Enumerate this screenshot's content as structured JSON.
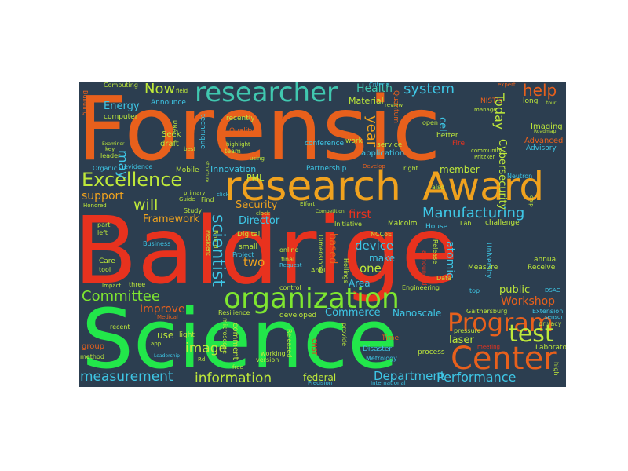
{
  "canvas": {
    "background": "#2c3e50"
  },
  "words": {
    "forensic": "Forensic",
    "baldrige": "Baldrige",
    "science": "Science",
    "research": "research",
    "award": "Award",
    "researcher": "researcher",
    "organization": "organization",
    "center": "Center",
    "program": "Program",
    "excellence": "Excellence",
    "manufacturing": "Manufacturing",
    "committee": "Committee",
    "measurement": "measurement",
    "information": "information",
    "department": "Department",
    "performance": "Performance",
    "workshop": "Workshop",
    "test": "test",
    "image": "image",
    "scientist": "scientist",
    "system": "system",
    "health": "Health",
    "help": "help",
    "now": "Now",
    "energy": "Energy",
    "framework": "Framework",
    "will": "will",
    "support": "support",
    "security": "Security",
    "director": "Director",
    "first": "first",
    "device": "device",
    "one": "one",
    "make": "make",
    "two": "two",
    "improve": "Improve",
    "public": "public",
    "laser": "laser",
    "commerce": "Commerce",
    "nanoscale": "Nanoscale",
    "federal": "federal",
    "cybersecurity": "Cybersecurity",
    "today": "Today",
    "year": "year",
    "member": "member",
    "material": "Material",
    "innovation": "Innovation",
    "pml": "PML",
    "based": "based",
    "area": "Area",
    "may": "may",
    "use": "use",
    "atomic": "atomic",
    "quantum": "Quantum",
    "university": "University",
    "cell": "cell",
    "advanced": "Advanced",
    "imaging": "Imaging",
    "application": "application",
    "mobile": "Mobile",
    "partnership": "Partnership",
    "seek": "Seek",
    "draft": "draft",
    "computer": "computer",
    "announce": "Announce",
    "leader": "leader",
    "evidence": "evidence",
    "organic": "Organic",
    "computing": "Computing",
    "conference": "conference",
    "recently": "recently",
    "quality": "Quality",
    "technique": "technique",
    "team": "team",
    "work": "work",
    "service": "service",
    "better": "better",
    "fire": "Fire",
    "open": "open",
    "advisory": "Advisory",
    "long": "long",
    "neutron": "Neutron",
    "challenge": "challenge",
    "lab": "Lab",
    "house": "House",
    "malcolm": "Malcolm",
    "initiative": "Initiative",
    "nccoe": "NCCoE",
    "digital": "Digital",
    "small": "small",
    "project": "Project",
    "online": "online",
    "final": "final",
    "request": "Request",
    "april": "April",
    "hollings": "Hollings",
    "engineering": "Engineering",
    "data": "Data",
    "measure": "Measure",
    "receive": "Receive",
    "annual": "annual",
    "top": "top",
    "extension": "Extension",
    "gaithersburg": "Gaithersburg",
    "pressure": "pressure",
    "laboratory": "Laboratory",
    "meeting": "meeting",
    "process": "process",
    "disaster": "Disaster",
    "metrology": "Metrology",
    "time": "Time",
    "provide": "provide",
    "chst": "CHST",
    "released": "Released",
    "working": "working",
    "developed": "developed",
    "resilience": "Resilience",
    "comment": "comment",
    "microscope": "microscope",
    "light": "light",
    "medical": "Medical",
    "recent": "recent",
    "method": "method",
    "group": "group",
    "business": "Business",
    "care": "Care",
    "tool": "tool",
    "part": "part",
    "left": "left",
    "impact": "Impact",
    "three": "three",
    "study": "Study",
    "guide": "Guide",
    "find": "Find",
    "primary": "primary",
    "board": "Board",
    "president": "President",
    "clock": "clock",
    "control": "control",
    "version": "version",
    "free": "free",
    "rd": "Rd",
    "international": "International",
    "precision": "Precision",
    "high": "high",
    "privacy": "privacy",
    "dsac": "DSAC",
    "chip": "chip",
    "roadmap": "Roadmap",
    "tour": "tour",
    "field": "field",
    "criteria": "Criteria",
    "review": "review",
    "community": "community",
    "pritzker": "Pritzker",
    "dna": "DNA",
    "develop": "Develop",
    "right": "right",
    "effort": "Effort",
    "competition": "Competition",
    "release": "Release",
    "announced": "announced",
    "also": "also",
    "building": "Building",
    "honored": "Honored",
    "highlight": "highlight",
    "using": "using",
    "structure": "structure",
    "examiner": "Examiner",
    "key": "key",
    "best": "best",
    "nist": "NIST's",
    "manage": "manage",
    "expert": "expert",
    "app": "app",
    "leadership": "Leadership",
    "sensor": "sensor",
    "click": "click",
    "dimensional": "Dimensional"
  }
}
